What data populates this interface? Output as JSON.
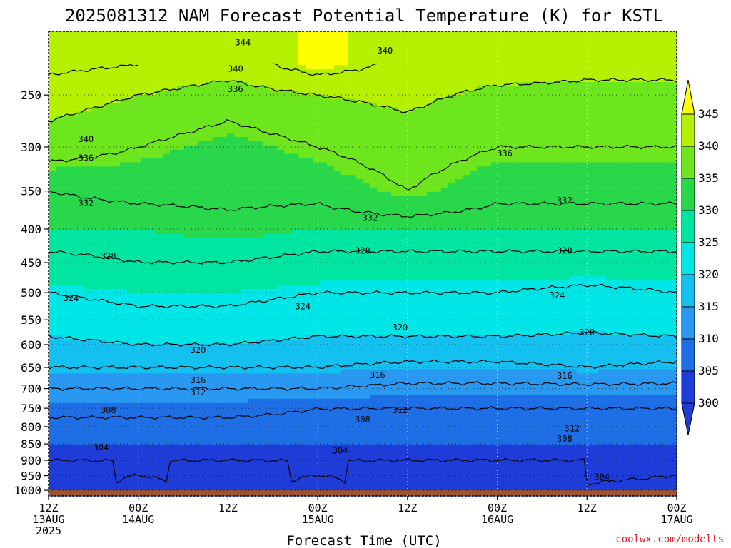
{
  "title": "2025081312 NAM Forecast Potential Temperature (K) for KSTL",
  "credit": "coolwx.com/modelts",
  "colors": {
    "ground": "#a0522d",
    "band_300": "#1e3cd8",
    "band_305": "#1e6ee6",
    "band_310": "#2898f0",
    "band_315": "#14c0f0",
    "band_320": "#00e6e6",
    "band_325": "#00e6a0",
    "band_330": "#28d84a",
    "band_335": "#6ee61e",
    "band_340": "#b4f000",
    "band_345": "#ffff00",
    "contour": "#000000"
  },
  "chart_data": {
    "type": "heatmap",
    "title": "2025081312 NAM Forecast Potential Temperature (K) for KSTL",
    "xlabel": "Forecast Time (UTC)",
    "ylabel": "",
    "y_axis": {
      "scale": "log-pressure",
      "reversed": true,
      "range_hpa": [
        1000,
        200
      ],
      "ticks": [
        250,
        300,
        350,
        400,
        450,
        500,
        550,
        600,
        650,
        700,
        750,
        800,
        850,
        900,
        950,
        1000
      ]
    },
    "x_axis": {
      "range_hours": [
        0,
        84
      ],
      "ticks": [
        {
          "hour": 0,
          "label": [
            "12Z",
            "13AUG",
            "2025"
          ]
        },
        {
          "hour": 12,
          "label": [
            "00Z",
            "14AUG"
          ]
        },
        {
          "hour": 24,
          "label": [
            "12Z",
            ""
          ]
        },
        {
          "hour": 36,
          "label": [
            "00Z",
            "15AUG"
          ]
        },
        {
          "hour": 48,
          "label": [
            "12Z",
            ""
          ]
        },
        {
          "hour": 60,
          "label": [
            "00Z",
            "16AUG"
          ]
        },
        {
          "hour": 72,
          "label": [
            "12Z",
            ""
          ]
        },
        {
          "hour": 84,
          "label": [
            "00Z",
            "17AUG"
          ]
        }
      ]
    },
    "grid": true,
    "colorbar": {
      "levels": [
        300,
        305,
        310,
        315,
        320,
        325,
        330,
        335,
        340,
        345
      ],
      "extend": "both",
      "placement": "right"
    },
    "field_samples": {
      "pressure_hpa": [
        975,
        950,
        900,
        850,
        800,
        750,
        700,
        650,
        600,
        550,
        500,
        450,
        400,
        350,
        300,
        250,
        225
      ],
      "theta_k_by_hour": [
        {
          "hour": 0,
          "theta": [
            301,
            303,
            304,
            305,
            307,
            309,
            312,
            316,
            319,
            322,
            324,
            327,
            330,
            332,
            338,
            342,
            345
          ]
        },
        {
          "hour": 12,
          "theta": [
            305,
            304,
            304,
            305,
            307,
            309,
            312,
            316,
            320,
            323,
            325,
            328,
            330,
            333,
            336,
            340,
            344
          ]
        },
        {
          "hour": 24,
          "theta": [
            302,
            303,
            304,
            305,
            307,
            309,
            312,
            316,
            320,
            323,
            325,
            328,
            331,
            333,
            334,
            338,
            342
          ]
        },
        {
          "hour": 36,
          "theta": [
            305,
            304,
            304,
            305,
            307,
            308,
            312,
            316,
            319,
            322,
            324,
            327,
            330,
            333,
            336,
            340,
            346
          ]
        },
        {
          "hour": 48,
          "theta": [
            302,
            303,
            304,
            305,
            306,
            308,
            311,
            315,
            319,
            322,
            324,
            327,
            330,
            336,
            338,
            341,
            343
          ]
        },
        {
          "hour": 60,
          "theta": [
            303,
            303,
            304,
            305,
            306,
            308,
            311,
            315,
            319,
            322,
            324,
            327,
            330,
            333,
            336,
            339,
            342
          ]
        },
        {
          "hour": 72,
          "theta": [
            304,
            303,
            304,
            305,
            306,
            308,
            311,
            316,
            319,
            321,
            323,
            327,
            330,
            333,
            336,
            339,
            341
          ]
        },
        {
          "hour": 84,
          "theta": [
            305,
            304,
            304,
            305,
            306,
            308,
            311,
            315,
            319,
            322,
            324,
            327,
            330,
            333,
            336,
            339,
            341
          ]
        }
      ]
    },
    "contours": [
      {
        "value": 304,
        "labels": [
          {
            "hour": 7.0,
            "p": 860
          },
          {
            "hour": 39.0,
            "p": 870
          },
          {
            "hour": 74.0,
            "p": 955
          }
        ]
      },
      {
        "value": 308,
        "labels": [
          {
            "hour": 8.0,
            "p": 755
          },
          {
            "hour": 42.0,
            "p": 780
          },
          {
            "hour": 69.0,
            "p": 835
          }
        ]
      },
      {
        "value": 312,
        "labels": [
          {
            "hour": 20.0,
            "p": 710
          },
          {
            "hour": 47.0,
            "p": 755
          },
          {
            "hour": 70.0,
            "p": 805
          }
        ]
      },
      {
        "value": 316,
        "labels": [
          {
            "hour": 20.0,
            "p": 680
          },
          {
            "hour": 44.0,
            "p": 668
          },
          {
            "hour": 69.0,
            "p": 670
          }
        ]
      },
      {
        "value": 320,
        "labels": [
          {
            "hour": 20.0,
            "p": 612
          },
          {
            "hour": 47.0,
            "p": 565
          },
          {
            "hour": 72.0,
            "p": 575
          }
        ]
      },
      {
        "value": 324,
        "labels": [
          {
            "hour": 3.0,
            "p": 510
          },
          {
            "hour": 34.0,
            "p": 525
          },
          {
            "hour": 68.0,
            "p": 505
          }
        ]
      },
      {
        "value": 328,
        "labels": [
          {
            "hour": 8.0,
            "p": 440
          },
          {
            "hour": 42.0,
            "p": 432
          },
          {
            "hour": 69.0,
            "p": 432
          }
        ]
      },
      {
        "value": 332,
        "labels": [
          {
            "hour": 5.0,
            "p": 365
          },
          {
            "hour": 43.0,
            "p": 385
          },
          {
            "hour": 69.0,
            "p": 362
          }
        ]
      },
      {
        "value": 336,
        "labels": [
          {
            "hour": 5.0,
            "p": 312
          },
          {
            "hour": 25.0,
            "p": 245
          },
          {
            "hour": 61.0,
            "p": 307
          }
        ]
      },
      {
        "value": 340,
        "labels": [
          {
            "hour": 5.0,
            "p": 292
          },
          {
            "hour": 25.0,
            "p": 228
          },
          {
            "hour": 45.0,
            "p": 214
          }
        ]
      },
      {
        "value": 344,
        "labels": [
          {
            "hour": 26.0,
            "p": 208
          }
        ]
      }
    ],
    "ground_band": {
      "from_hpa": 1000,
      "color": "#a0522d"
    }
  }
}
